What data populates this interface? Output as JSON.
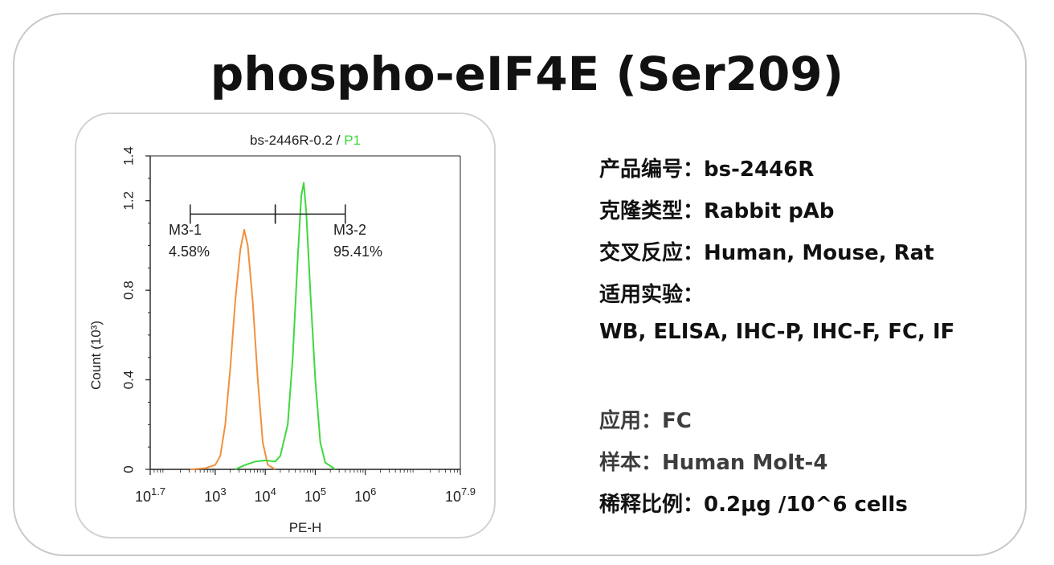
{
  "title": "phospho-eIF4E (Ser209)",
  "info": [
    {
      "label": "产品编号：",
      "value": "bs-2446R"
    },
    {
      "label": "克隆类型：",
      "value": "Rabbit pAb"
    },
    {
      "label": "交叉反应：",
      "value": "Human, Mouse, Rat"
    },
    {
      "label": "适用实验：",
      "value": ""
    },
    {
      "label": "",
      "value": "WB, ELISA, IHC-P, IHC-F, FC, IF"
    }
  ],
  "app": [
    {
      "label": "应用：",
      "value": "FC"
    },
    {
      "label": "样本：",
      "value": "Human Molt-4"
    },
    {
      "label": "稀释比例：",
      "value": "0.2μg /10^6 cells"
    }
  ],
  "chart_data": {
    "type": "line",
    "title_part1": "bs-2446R-0.2 / ",
    "title_part2": "P1",
    "xlabel": "PE-H",
    "ylabel": "Count (10³)",
    "xscale": "log",
    "xlim_log10": [
      1.7,
      7.9
    ],
    "ylim": [
      0,
      1.4
    ],
    "xticks": [
      {
        "base": "10",
        "exp": "1.7",
        "log": 1.7
      },
      {
        "base": "10",
        "exp": "3",
        "log": 3
      },
      {
        "base": "10",
        "exp": "4",
        "log": 4
      },
      {
        "base": "10",
        "exp": "5",
        "log": 5
      },
      {
        "base": "10",
        "exp": "6",
        "log": 6
      },
      {
        "base": "10",
        "exp": "7.9",
        "log": 7.9
      }
    ],
    "yticks": [
      {
        "label": "0",
        "value": 0
      },
      {
        "label": "0.4",
        "value": 0.4
      },
      {
        "label": "0.8",
        "value": 0.8
      },
      {
        "label": "1.2",
        "value": 1.2
      },
      {
        "label": "1.4",
        "value": 1.4
      }
    ],
    "gates": [
      {
        "name": "M3-1",
        "percent": "4.58%",
        "from_log": 2.5,
        "to_log": 4.2
      },
      {
        "name": "M3-2",
        "percent": "95.41%",
        "from_log": 4.2,
        "to_log": 5.6
      }
    ],
    "series": [
      {
        "color": "#f0913e",
        "points_log10": [
          [
            2.5,
            0.0
          ],
          [
            2.8,
            0.005
          ],
          [
            3.0,
            0.02
          ],
          [
            3.1,
            0.06
          ],
          [
            3.2,
            0.2
          ],
          [
            3.3,
            0.45
          ],
          [
            3.4,
            0.75
          ],
          [
            3.5,
            0.98
          ],
          [
            3.58,
            1.07
          ],
          [
            3.65,
            1.0
          ],
          [
            3.75,
            0.75
          ],
          [
            3.85,
            0.4
          ],
          [
            3.95,
            0.12
          ],
          [
            4.05,
            0.02
          ],
          [
            4.2,
            0.0
          ]
        ]
      },
      {
        "color": "#3ed83e",
        "points_log10": [
          [
            3.4,
            0.0
          ],
          [
            3.6,
            0.02
          ],
          [
            3.8,
            0.035
          ],
          [
            4.0,
            0.04
          ],
          [
            4.2,
            0.035
          ],
          [
            4.3,
            0.06
          ],
          [
            4.45,
            0.2
          ],
          [
            4.55,
            0.5
          ],
          [
            4.65,
            0.95
          ],
          [
            4.72,
            1.22
          ],
          [
            4.77,
            1.28
          ],
          [
            4.82,
            1.15
          ],
          [
            4.9,
            0.8
          ],
          [
            5.0,
            0.4
          ],
          [
            5.1,
            0.12
          ],
          [
            5.2,
            0.03
          ],
          [
            5.4,
            0.0
          ]
        ]
      }
    ]
  }
}
